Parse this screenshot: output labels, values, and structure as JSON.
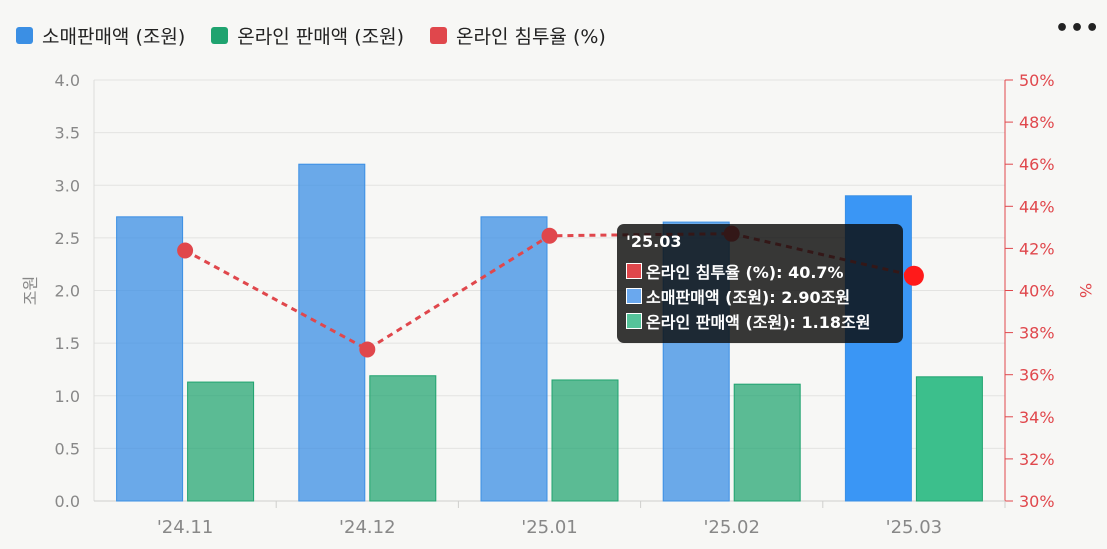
{
  "legend": [
    {
      "label": "소매판매액 (조원)",
      "color": "#3b8fe4"
    },
    {
      "label": "온라인 판매액 (조원)",
      "color": "#1fa36f"
    },
    {
      "label": "온라인 침투율 (%)",
      "color": "#e0474c"
    }
  ],
  "menu_label": "•••",
  "tooltip": {
    "title": "'25.03",
    "rows": [
      {
        "text": "온라인 침투율 (%): 40.7%",
        "color": "#e0474c"
      },
      {
        "text": "소매판매액 (조원): 2.90조원",
        "color": "#6aa8ee"
      },
      {
        "text": "온라인 판매액 (조원): 1.18조원",
        "color": "#55c39a"
      }
    ]
  },
  "chart_data": {
    "type": "bar",
    "categories": [
      "'24.11",
      "'24.12",
      "'25.01",
      "'25.02",
      "'25.03"
    ],
    "series": [
      {
        "name": "소매판매액 (조원)",
        "type": "bar",
        "axis": "left",
        "values": [
          2.7,
          3.2,
          2.7,
          2.65,
          2.9
        ],
        "color": "#3b8fe4"
      },
      {
        "name": "온라인 판매액 (조원)",
        "type": "bar",
        "axis": "left",
        "values": [
          1.13,
          1.19,
          1.15,
          1.11,
          1.18
        ],
        "color": "#1fa36f"
      },
      {
        "name": "온라인 침투율 (%)",
        "type": "line",
        "axis": "right",
        "values": [
          41.9,
          37.2,
          42.6,
          42.7,
          40.7
        ],
        "color": "#e0474c",
        "dashed": true
      }
    ],
    "ylabel": "조원",
    "ylim": [
      0,
      4.0
    ],
    "yticks": [
      "0.0",
      "0.5",
      "1.0",
      "1.5",
      "2.0",
      "2.5",
      "3.0",
      "3.5",
      "4.0"
    ],
    "y2label": "%",
    "y2lim": [
      30,
      50
    ],
    "y2ticks": [
      "30%",
      "32%",
      "34%",
      "36%",
      "38%",
      "40%",
      "42%",
      "44%",
      "46%",
      "48%",
      "50%"
    ],
    "grid": true,
    "legend_position": "top-left",
    "highlighted_category": "'25.03"
  }
}
